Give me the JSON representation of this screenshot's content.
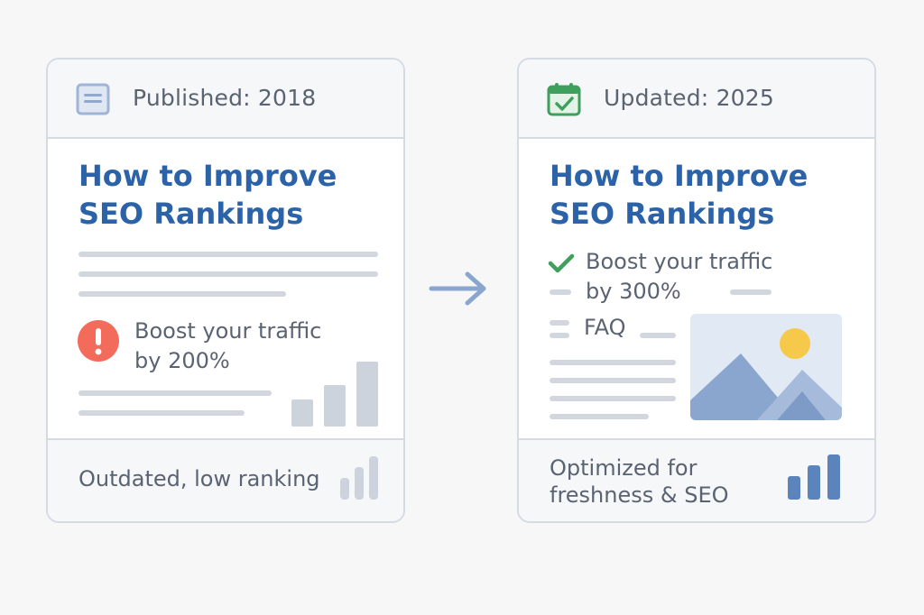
{
  "left_card": {
    "header": {
      "icon": "document-icon",
      "label": "Published: 2018"
    },
    "title": [
      "How to Improve",
      "SEO Rankings"
    ],
    "callout": {
      "icon": "exclamation-alert-icon",
      "lines": [
        "Boost your traffic",
        "by 200%"
      ]
    },
    "footer": {
      "label": "Outdated, low ranking",
      "icon": "bar-chart-icon"
    },
    "colors": {
      "title": "#2c63a8",
      "alert": "#f26b5b",
      "chart": "#c8ced8"
    }
  },
  "arrow": {
    "icon": "arrow-right-icon",
    "color": "#8aa6cf"
  },
  "right_card": {
    "header": {
      "icon": "calendar-check-icon",
      "label": "Updated: 2025"
    },
    "title": [
      "How to Improve",
      "SEO Rankings"
    ],
    "callout": {
      "icon": "checkmark-icon",
      "lines": [
        "Boost your traffic",
        "by 300%"
      ]
    },
    "faq_label": "FAQ",
    "image": {
      "icon": "mountain-sun-image-icon"
    },
    "footer": {
      "lines": [
        "Optimized for",
        "freshness & SEO"
      ],
      "icon": "bar-chart-icon"
    },
    "colors": {
      "title": "#2c63a8",
      "check": "#3fa05d",
      "chart": "#5b84bd",
      "sun": "#f6c94a"
    }
  }
}
